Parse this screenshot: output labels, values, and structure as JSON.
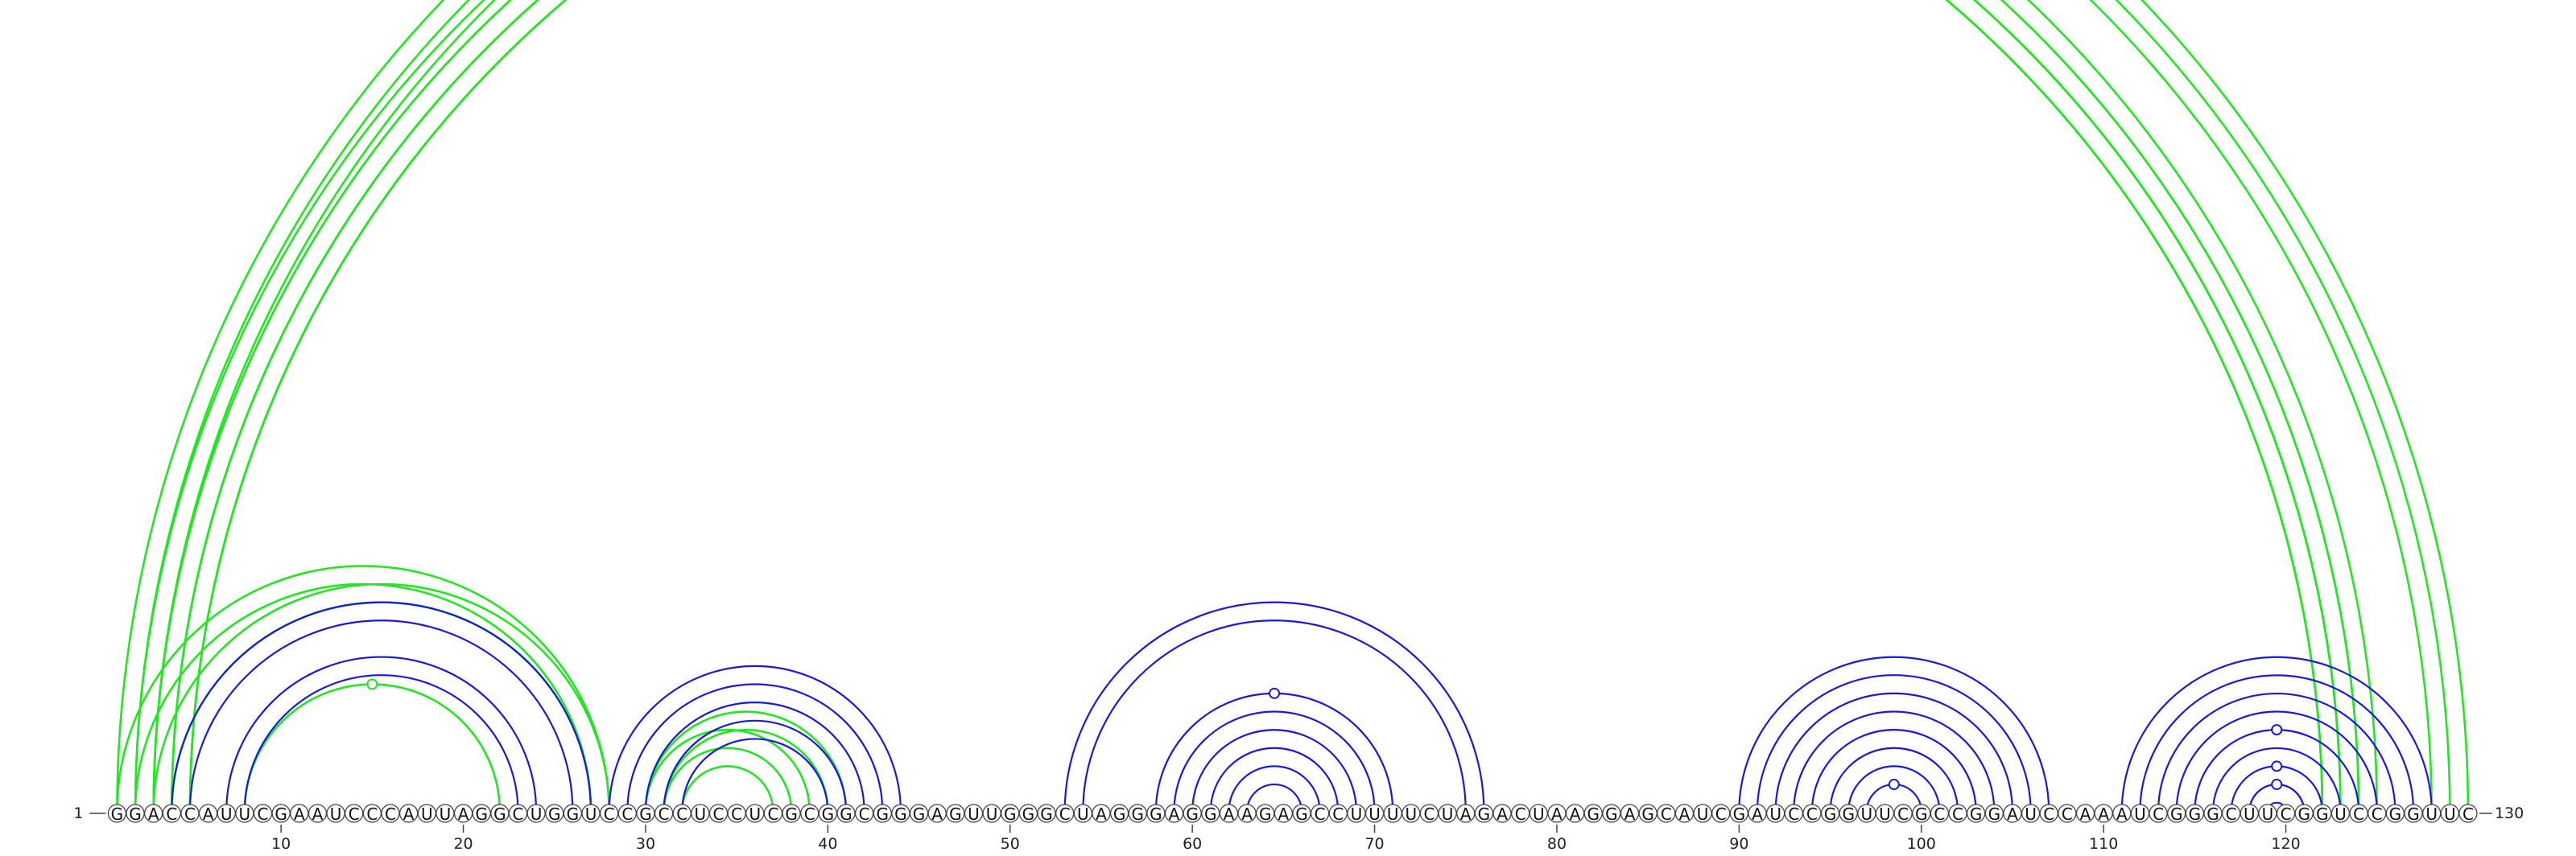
{
  "sequence": "GGACCAUUCGAAUCCCAUUAGGCUGGUCCGCCUCCUCGCGGCGGGAGUUGGGCUAGGGAGGAAGAGCCUUUUCUAGACUAAGGAGCAUCGAUCCGGUUCGCCGGAUCCAAAUCGGGCUUCGGUCCGGUUC",
  "start_label": "1",
  "end_label": "130",
  "ticks": [
    "10",
    "20",
    "30",
    "40",
    "50",
    "60",
    "70",
    "80",
    "90",
    "100",
    "110",
    "120"
  ],
  "colors": {
    "green": "#22e622",
    "blue": "#1a1ad6"
  },
  "chart_data": {
    "type": "arc-diagram",
    "sequence_length": 130,
    "helices_blue": [
      {
        "start": 4,
        "end": 27,
        "length": 2
      },
      {
        "start": 7,
        "end": 24,
        "length": 2
      },
      {
        "start": 28,
        "end": 44,
        "length": 5
      },
      {
        "start": 53,
        "end": 76,
        "length": 2
      },
      {
        "start": 58,
        "end": 71,
        "length": 3
      },
      {
        "start": 61,
        "end": 68,
        "length": 3
      },
      {
        "start": 90,
        "end": 107,
        "length": 2
      },
      {
        "start": 92,
        "end": 105,
        "length": 5
      },
      {
        "start": 97,
        "end": 100,
        "length": 1
      },
      {
        "start": 111,
        "end": 128,
        "length": 2
      },
      {
        "start": 113,
        "end": 126,
        "length": 2
      },
      {
        "start": 115,
        "end": 124,
        "length": 5
      },
      {
        "start": 118,
        "end": 121,
        "length": 1
      }
    ],
    "helices_green": [
      {
        "start": 1,
        "end": 130,
        "length": 3
      },
      {
        "start": 2,
        "end": 125,
        "length": 4
      },
      {
        "start": 3,
        "end": 124,
        "length": 3
      },
      {
        "start": 4,
        "end": 123,
        "length": 2
      },
      {
        "start": 1,
        "end": 28,
        "length": 2
      },
      {
        "start": 3,
        "end": 28,
        "length": 2
      },
      {
        "start": 8,
        "end": 22,
        "length": 1
      },
      {
        "start": 30,
        "end": 39,
        "length": 3
      },
      {
        "start": 30,
        "end": 41,
        "length": 2
      }
    ],
    "loop_markers": [
      {
        "color": "green",
        "i": 8,
        "j": 22
      },
      {
        "color": "green",
        "i": 1,
        "j": 130
      },
      {
        "color": "blue",
        "i": 58,
        "j": 71
      },
      {
        "color": "blue",
        "i": 97,
        "j": 100
      },
      {
        "color": "blue",
        "i": 115,
        "j": 124
      },
      {
        "color": "blue",
        "i": 117,
        "j": 122
      },
      {
        "color": "blue",
        "i": 118,
        "j": 121
      }
    ]
  }
}
